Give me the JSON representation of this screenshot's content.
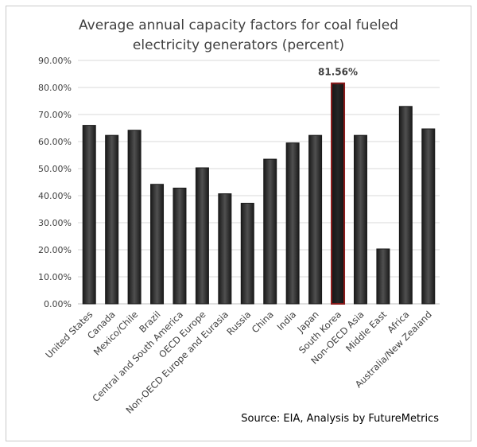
{
  "chart_data": {
    "type": "bar",
    "title_lines": [
      "Average annual capacity factors for coal fueled",
      "electricity generators (percent)"
    ],
    "categories": [
      "United States",
      "Canada",
      "Mexico/Chile",
      "Brazil",
      "Central and South America",
      "OECD Europe",
      "Non-OECD Europe and Eurasia",
      "Russia",
      "China",
      "India",
      "Japan",
      "South Korea",
      "Non-OECD Asia",
      "Middle East",
      "Africa",
      "Australia/New Zealand"
    ],
    "values": [
      66.0,
      62.3,
      64.2,
      44.2,
      42.8,
      50.3,
      40.7,
      37.2,
      53.5,
      59.5,
      62.3,
      81.56,
      62.3,
      20.3,
      73.0,
      64.7
    ],
    "highlight": {
      "category": "South Korea",
      "label": "81.56%"
    },
    "ylim": [
      0,
      90
    ],
    "yticks": [
      "0.00%",
      "10.00%",
      "20.00%",
      "30.00%",
      "40.00%",
      "50.00%",
      "60.00%",
      "70.00%",
      "80.00%",
      "90.00%"
    ],
    "colors": {
      "bar": "#333333",
      "highlight_edge": "#8b1a1a",
      "highlight_fill": "#1c1c1c",
      "grid": "#d9d9d9"
    },
    "grid": "horizontal",
    "legend": "none",
    "source": "Source: EIA, Analysis by FutureMetrics"
  }
}
